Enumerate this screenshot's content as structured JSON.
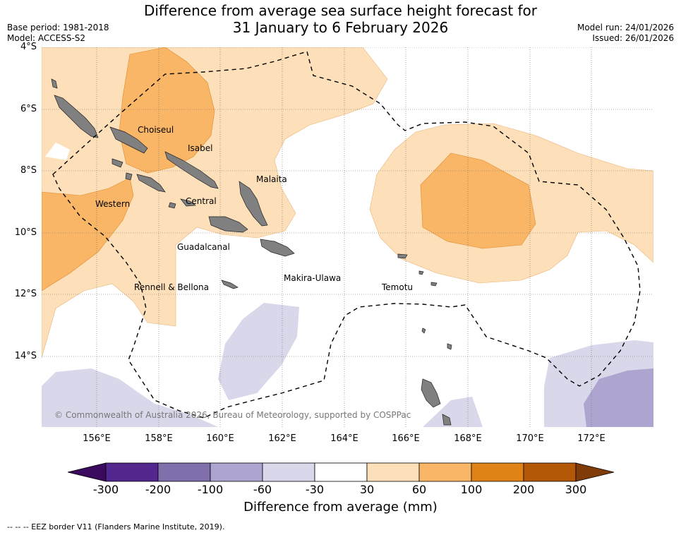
{
  "title_line1": "Difference from average sea surface height forecast for",
  "title_line2": "31 January to 6 February 2026",
  "base_period": "Base period: 1981-2018",
  "model": "Model: ACCESS-S2",
  "model_run": "Model run: 24/01/2026",
  "issued": "Issued: 26/01/2026",
  "copyright": "© Commonwealth of Australia 2026, Bureau of Meteorology, supported by COSPPac",
  "lat_ticks": [
    "4°S",
    "6°S",
    "8°S",
    "10°S",
    "12°S",
    "14°S"
  ],
  "lon_ticks": [
    "156°E",
    "158°E",
    "160°E",
    "162°E",
    "164°E",
    "166°E",
    "168°E",
    "170°E",
    "172°E"
  ],
  "provinces": [
    "Choiseul",
    "Isabel",
    "Malaita",
    "Western",
    "Central",
    "Guadalcanal",
    "Makira-Ulawa",
    "Rennell & Bellona",
    "Temotu"
  ],
  "colorbar": {
    "ticks": [
      "-300",
      "-200",
      "-100",
      "-60",
      "-30",
      "30",
      "60",
      "100",
      "200",
      "300"
    ],
    "colors": [
      "#3a0a5e",
      "#54278f",
      "#7f6fab",
      "#ada4cf",
      "#d8d8ea",
      "#ffffff",
      "#fde0b9",
      "#f9b666",
      "#e08317",
      "#b35806",
      "#7f3b08"
    ],
    "label": "Difference from average (mm)"
  },
  "eez_note": "--  --  -- EEZ border V11 (Flanders Marine Institute, 2019)."
}
